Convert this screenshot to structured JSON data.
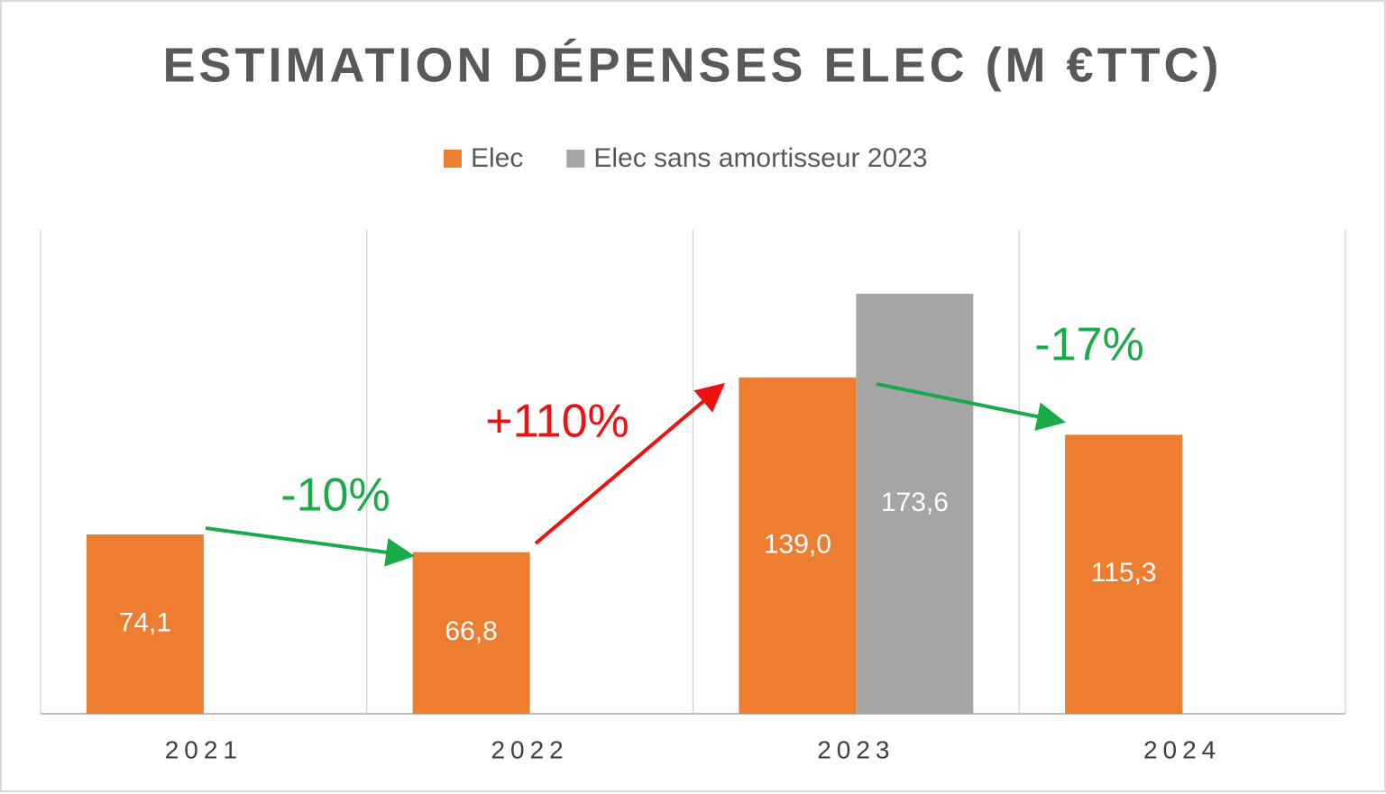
{
  "chart_data": {
    "type": "bar",
    "title": "ESTIMATION DÉPENSES ELEC (M €TTC)",
    "categories": [
      "2021",
      "2022",
      "2023",
      "2024"
    ],
    "series": [
      {
        "name": "Elec",
        "color": "#ed7d31",
        "values": [
          74.1,
          66.8,
          139.0,
          115.3
        ],
        "value_labels": [
          "74,1",
          "66,8",
          "139,0",
          "115,3"
        ]
      },
      {
        "name": "Elec sans amortisseur 2023",
        "color": "#a5a5a5",
        "values": [
          null,
          null,
          173.6,
          null
        ],
        "value_labels": [
          null,
          null,
          "173,6",
          null
        ]
      }
    ],
    "ylim": [
      0,
      200
    ],
    "grid": true,
    "legend": "top",
    "annotations": [
      {
        "text": "-10%",
        "color": "#1aaa4a"
      },
      {
        "text": "+110%",
        "color": "#ee1111"
      },
      {
        "text": "-17%",
        "color": "#1aaa4a"
      }
    ]
  }
}
